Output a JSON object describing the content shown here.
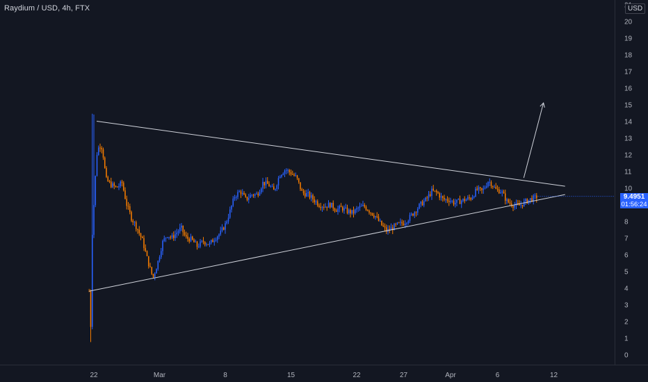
{
  "header": {
    "symbol_title": "Raydium / USD, 4h, FTX"
  },
  "currency_badge": "USD",
  "last_price": {
    "price": "9.4951",
    "countdown": "01:56:24"
  },
  "colors": {
    "background": "#131722",
    "up": "#2962ff",
    "down": "#f57c00",
    "trendline": "#d1d4dc",
    "axis_text": "#b2b5be"
  },
  "chart_data": {
    "type": "candlestick",
    "title": "Raydium / USD, 4h, FTX",
    "xlabel": "",
    "ylabel": "",
    "ylim": [
      -0.5,
      21
    ],
    "grid": false,
    "y_ticks": [
      "0",
      "1",
      "2",
      "3",
      "4",
      "5",
      "6",
      "7",
      "8",
      "9",
      "10",
      "11",
      "12",
      "13",
      "14",
      "15",
      "16",
      "17",
      "18",
      "19",
      "20",
      "21"
    ],
    "x_ticks": [
      {
        "label": "22",
        "x": 0
      },
      {
        "label": "Mar",
        "x": 7
      },
      {
        "label": "8",
        "x": 14
      },
      {
        "label": "15",
        "x": 21
      },
      {
        "label": "22",
        "x": 28
      },
      {
        "label": "27",
        "x": 33
      },
      {
        "label": "Apr",
        "x": 38
      },
      {
        "label": "6",
        "x": 43
      },
      {
        "label": "12",
        "x": 49
      }
    ],
    "x_range": [
      -2.7,
      55
    ],
    "x_unit": "days since Feb 22",
    "price_path": [
      [
        -0.5,
        3.8
      ],
      [
        -0.35,
        0.8
      ],
      [
        -0.25,
        6.5
      ],
      [
        0,
        9.0
      ],
      [
        0.3,
        12.0
      ],
      [
        0.6,
        12.6
      ],
      [
        0.9,
        12.4
      ],
      [
        1.3,
        10.5
      ],
      [
        1.8,
        10.2
      ],
      [
        2.4,
        10.0
      ],
      [
        3.0,
        10.3
      ],
      [
        3.5,
        9.0
      ],
      [
        4.0,
        8.2
      ],
      [
        4.6,
        7.6
      ],
      [
        5.2,
        6.8
      ],
      [
        5.8,
        5.5
      ],
      [
        6.3,
        4.6
      ],
      [
        6.8,
        5.5
      ],
      [
        7.3,
        6.7
      ],
      [
        7.8,
        7.2
      ],
      [
        8.3,
        7.0
      ],
      [
        8.8,
        7.3
      ],
      [
        9.3,
        7.6
      ],
      [
        9.8,
        7.0
      ],
      [
        10.4,
        6.9
      ],
      [
        11.0,
        6.5
      ],
      [
        11.7,
        6.8
      ],
      [
        12.3,
        6.6
      ],
      [
        12.9,
        7.0
      ],
      [
        13.5,
        7.3
      ],
      [
        14.0,
        7.8
      ],
      [
        14.5,
        8.6
      ],
      [
        15.0,
        9.5
      ],
      [
        15.6,
        9.8
      ],
      [
        16.2,
        9.3
      ],
      [
        16.8,
        9.6
      ],
      [
        17.4,
        9.6
      ],
      [
        18.0,
        10.3
      ],
      [
        18.6,
        10.2
      ],
      [
        19.2,
        9.8
      ],
      [
        19.8,
        10.8
      ],
      [
        20.4,
        11.1
      ],
      [
        21.0,
        10.9
      ],
      [
        21.6,
        10.6
      ],
      [
        22.2,
        9.7
      ],
      [
        22.8,
        9.6
      ],
      [
        23.4,
        9.3
      ],
      [
        24.0,
        9.0
      ],
      [
        24.6,
        8.9
      ],
      [
        25.2,
        9.0
      ],
      [
        25.8,
        8.7
      ],
      [
        26.4,
        8.8
      ],
      [
        27.0,
        8.6
      ],
      [
        27.6,
        8.5
      ],
      [
        28.2,
        8.8
      ],
      [
        28.8,
        8.9
      ],
      [
        29.4,
        8.6
      ],
      [
        30.0,
        8.3
      ],
      [
        30.6,
        7.8
      ],
      [
        31.2,
        7.4
      ],
      [
        31.8,
        7.6
      ],
      [
        32.4,
        7.8
      ],
      [
        33.0,
        7.9
      ],
      [
        33.6,
        8.2
      ],
      [
        34.2,
        8.6
      ],
      [
        34.8,
        9.0
      ],
      [
        35.4,
        9.3
      ],
      [
        36.0,
        9.8
      ],
      [
        36.6,
        9.7
      ],
      [
        37.2,
        9.3
      ],
      [
        37.8,
        9.3
      ],
      [
        38.4,
        9.1
      ],
      [
        39.0,
        9.2
      ],
      [
        39.6,
        9.3
      ],
      [
        40.2,
        9.4
      ],
      [
        40.8,
        9.9
      ],
      [
        41.4,
        9.8
      ],
      [
        42.0,
        10.4
      ],
      [
        42.3,
        10.3
      ],
      [
        42.8,
        9.9
      ],
      [
        43.4,
        9.8
      ],
      [
        44.0,
        9.2
      ],
      [
        44.6,
        9.0
      ],
      [
        45.2,
        8.9
      ],
      [
        45.8,
        9.1
      ],
      [
        46.4,
        9.3
      ],
      [
        47.0,
        9.4
      ],
      [
        47.3,
        9.5
      ]
    ],
    "trendlines": [
      {
        "name": "upper-resistance",
        "x1": 0.3,
        "y1": 14.0,
        "x2": 50.2,
        "y2": 10.1
      },
      {
        "name": "lower-support",
        "x1": -0.5,
        "y1": 3.8,
        "x2": 50.2,
        "y2": 9.6
      }
    ],
    "projection_arrow": {
      "x1": 45.8,
      "y1": 10.6,
      "x2": 47.9,
      "y2": 15.1
    },
    "last_price": 9.4951
  }
}
